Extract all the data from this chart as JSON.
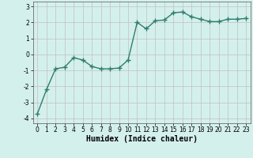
{
  "x": [
    0,
    1,
    2,
    3,
    4,
    5,
    6,
    7,
    8,
    9,
    10,
    11,
    12,
    13,
    14,
    15,
    16,
    17,
    18,
    19,
    20,
    21,
    22,
    23
  ],
  "y": [
    -3.7,
    -2.2,
    -0.9,
    -0.8,
    -0.2,
    -0.35,
    -0.75,
    -0.9,
    -0.9,
    -0.85,
    -0.35,
    2.0,
    1.6,
    2.1,
    2.15,
    2.6,
    2.65,
    2.35,
    2.2,
    2.05,
    2.05,
    2.2,
    2.2,
    2.25
  ],
  "line_color": "#2e7d6e",
  "marker": "+",
  "marker_size": 4,
  "linewidth": 1.0,
  "xlabel": "Humidex (Indice chaleur)",
  "xlim": [
    -0.5,
    23.5
  ],
  "ylim": [
    -4.3,
    3.3
  ],
  "yticks": [
    -4,
    -3,
    -2,
    -1,
    0,
    1,
    2,
    3
  ],
  "xticks": [
    0,
    1,
    2,
    3,
    4,
    5,
    6,
    7,
    8,
    9,
    10,
    11,
    12,
    13,
    14,
    15,
    16,
    17,
    18,
    19,
    20,
    21,
    22,
    23
  ],
  "background_color": "#d4f0ec",
  "grid_color": "#c0c0c0",
  "tick_fontsize": 5.5,
  "xlabel_fontsize": 7
}
